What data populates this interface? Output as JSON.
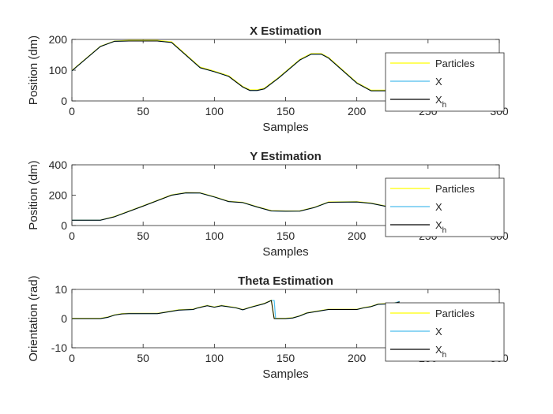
{
  "chart_data": [
    {
      "type": "line",
      "title": "X Estimation",
      "xlabel": "Samples",
      "ylabel": "Position (dm)",
      "xlim": [
        0,
        300
      ],
      "ylim": [
        0,
        200
      ],
      "xticks": [
        "0",
        "50",
        "100",
        "150",
        "200",
        "250",
        "300"
      ],
      "yticks": [
        "0",
        "100",
        "200"
      ],
      "grid": false,
      "legend_position": "right",
      "series": [
        {
          "name": "Particles",
          "color": "#ffff00",
          "x": [
            0,
            20,
            30,
            40,
            60,
            70,
            90,
            100,
            110,
            120,
            125,
            130,
            135,
            145,
            160,
            168,
            175,
            180,
            200,
            210,
            230
          ],
          "y": [
            99,
            178,
            195,
            197,
            197,
            192,
            110,
            97,
            82,
            47,
            36,
            36,
            41,
            76,
            135,
            154,
            154,
            142,
            60,
            35,
            35
          ]
        },
        {
          "name": "X",
          "color": "#4dbeee",
          "x": [
            0,
            20,
            30,
            40,
            60,
            70,
            90,
            100,
            110,
            120,
            125,
            130,
            135,
            145,
            160,
            168,
            175,
            180,
            200,
            210,
            230
          ],
          "y": [
            98,
            177,
            194,
            195,
            195,
            190,
            108,
            95,
            80,
            45,
            34,
            34,
            39,
            74,
            133,
            152,
            152,
            140,
            58,
            33,
            33
          ]
        },
        {
          "name": "X_h",
          "color": "#000000",
          "x": [
            0,
            20,
            30,
            40,
            60,
            70,
            90,
            100,
            110,
            120,
            125,
            130,
            135,
            145,
            160,
            168,
            175,
            180,
            200,
            210,
            230
          ],
          "y": [
            98,
            177,
            194,
            195,
            195,
            190,
            108,
            95,
            80,
            45,
            34,
            34,
            39,
            74,
            133,
            152,
            152,
            140,
            58,
            33,
            33
          ]
        }
      ]
    },
    {
      "type": "line",
      "title": "Y Estimation",
      "xlabel": "Samples",
      "ylabel": "Position (dm)",
      "xlim": [
        0,
        300
      ],
      "ylim": [
        0,
        400
      ],
      "xticks": [
        "0",
        "50",
        "100",
        "150",
        "200",
        "250",
        "300"
      ],
      "yticks": [
        "0",
        "200",
        "400"
      ],
      "grid": false,
      "legend_position": "right",
      "series": [
        {
          "name": "Particles",
          "color": "#ffff00",
          "x": [
            0,
            20,
            30,
            50,
            70,
            80,
            90,
            100,
            110,
            120,
            130,
            140,
            150,
            160,
            170,
            180,
            200,
            210,
            230
          ],
          "y": [
            36,
            36,
            60,
            130,
            202,
            217,
            216,
            190,
            160,
            153,
            124,
            98,
            96,
            97,
            120,
            155,
            157,
            148,
            110
          ]
        },
        {
          "name": "X",
          "color": "#4dbeee",
          "x": [
            0,
            20,
            30,
            50,
            70,
            80,
            90,
            100,
            110,
            120,
            130,
            140,
            150,
            160,
            170,
            180,
            200,
            210,
            230
          ],
          "y": [
            35,
            35,
            58,
            128,
            200,
            215,
            214,
            188,
            158,
            151,
            122,
            96,
            94,
            95,
            118,
            153,
            155,
            146,
            108
          ]
        },
        {
          "name": "X_h",
          "color": "#000000",
          "x": [
            0,
            20,
            30,
            50,
            70,
            80,
            90,
            100,
            110,
            120,
            130,
            140,
            150,
            160,
            170,
            180,
            200,
            210,
            230
          ],
          "y": [
            35,
            35,
            58,
            128,
            200,
            215,
            214,
            188,
            158,
            151,
            122,
            96,
            94,
            95,
            118,
            153,
            155,
            146,
            108
          ]
        }
      ]
    },
    {
      "type": "line",
      "title": "Theta Estimation",
      "xlabel": "Samples",
      "ylabel": "Orientation (rad)",
      "xlim": [
        0,
        300
      ],
      "ylim": [
        -10,
        10
      ],
      "xticks": [
        "0",
        "50",
        "100",
        "150",
        "200",
        "250",
        "300"
      ],
      "yticks": [
        "-10",
        "0",
        "10"
      ],
      "grid": false,
      "legend_position": "right",
      "series": [
        {
          "name": "Particles",
          "color": "#ffff00",
          "x": [
            0,
            20,
            25,
            30,
            35,
            40,
            60,
            70,
            75,
            85,
            88,
            95,
            100,
            105,
            115,
            120,
            125,
            135,
            140,
            141,
            142,
            150,
            155,
            160,
            165,
            175,
            180,
            190,
            200,
            205,
            210,
            215,
            225,
            230
          ],
          "y": [
            0.1,
            0.1,
            0.5,
            1.3,
            1.7,
            1.8,
            1.8,
            2.6,
            3.0,
            3.2,
            3.7,
            4.5,
            4.0,
            4.5,
            3.8,
            3.1,
            3.9,
            5.2,
            6.3,
            3.0,
            0.1,
            0.1,
            0.3,
            1.0,
            2.0,
            2.8,
            3.2,
            3.2,
            3.2,
            3.8,
            4.2,
            5.0,
            5.2,
            5.8
          ]
        },
        {
          "name": "X",
          "color": "#4dbeee",
          "x": [
            0,
            20,
            25,
            30,
            35,
            40,
            60,
            70,
            75,
            85,
            88,
            95,
            100,
            105,
            115,
            120,
            125,
            135,
            140,
            142,
            143,
            150,
            155,
            160,
            165,
            175,
            180,
            190,
            200,
            205,
            210,
            215,
            225,
            230
          ],
          "y": [
            0.0,
            0.0,
            0.4,
            1.2,
            1.6,
            1.7,
            1.7,
            2.5,
            2.9,
            3.1,
            3.6,
            4.4,
            3.9,
            4.4,
            3.7,
            3.0,
            3.8,
            5.1,
            6.2,
            6.2,
            0.0,
            0.0,
            0.2,
            0.9,
            1.9,
            2.7,
            3.1,
            3.1,
            3.1,
            3.7,
            4.1,
            4.9,
            5.1,
            5.9
          ]
        },
        {
          "name": "X_h",
          "color": "#000000",
          "x": [
            0,
            20,
            25,
            30,
            35,
            40,
            60,
            70,
            75,
            85,
            88,
            95,
            100,
            105,
            115,
            120,
            125,
            135,
            140,
            141,
            142,
            150,
            155,
            160,
            165,
            175,
            180,
            190,
            200,
            205,
            210,
            215,
            225,
            230
          ],
          "y": [
            0.0,
            0.0,
            0.4,
            1.2,
            1.6,
            1.7,
            1.7,
            2.5,
            2.9,
            3.1,
            3.6,
            4.4,
            3.9,
            4.4,
            3.7,
            3.0,
            3.8,
            5.1,
            6.2,
            3.0,
            0.0,
            0.0,
            0.2,
            0.9,
            1.9,
            2.7,
            3.1,
            3.1,
            3.1,
            3.7,
            4.1,
            4.9,
            5.1,
            5.7
          ]
        }
      ]
    }
  ],
  "legend_labels": [
    {
      "text": "Particles"
    },
    {
      "text": "X"
    },
    {
      "text": "X",
      "subscript": "h"
    }
  ]
}
